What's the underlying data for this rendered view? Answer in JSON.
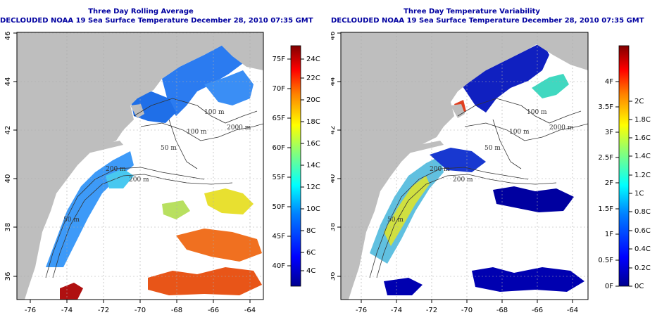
{
  "panels": [
    {
      "id": "left",
      "title_line1": "Three Day Rolling Average",
      "title_line2": "DECLOUDED NOAA 19 Sea Surface Temperature December 28, 2010 07:35 GMT",
      "colorbar": {
        "left_labels": [
          "75F",
          "70F",
          "65F",
          "60F",
          "55F",
          "50F",
          "45F",
          "40F"
        ],
        "right_labels": [
          "24C",
          "22C",
          "20C",
          "18C",
          "16C",
          "14C",
          "12C",
          "10C",
          "8C",
          "6C",
          "4C"
        ]
      }
    },
    {
      "id": "right",
      "title_line1": "Three Day Temperature Variability",
      "title_line2": "DECLOUDED NOAA 19 Sea Surface Temperature December 28, 2010 07:35 GMT",
      "colorbar": {
        "left_labels": [
          "4F",
          "3.5F",
          "3F",
          "2.5F",
          "2F",
          "1.5F",
          "1F",
          "0.5F",
          "0F"
        ],
        "right_labels": [
          "2C",
          "1.8C",
          "1.6C",
          "1.4C",
          "1.2C",
          "1C",
          "0.8C",
          "0.6C",
          "0.4C",
          "0.2C",
          "0C"
        ]
      }
    }
  ],
  "x_ticks": [
    "-76",
    "-74",
    "-72",
    "-70",
    "-68",
    "-66",
    "-64"
  ],
  "y_ticks": [
    "36",
    "38",
    "40",
    "42",
    "44",
    "46"
  ],
  "contour_labels": [
    "100 m",
    "100 m",
    "2000 m",
    "200 m",
    "200 m",
    "50 m",
    "50 m"
  ],
  "colors": {
    "land": "#bebebe",
    "ocean": "#ffffff",
    "contour": "#333333",
    "grid": "#aaaaaa",
    "title": "#0000a0"
  }
}
